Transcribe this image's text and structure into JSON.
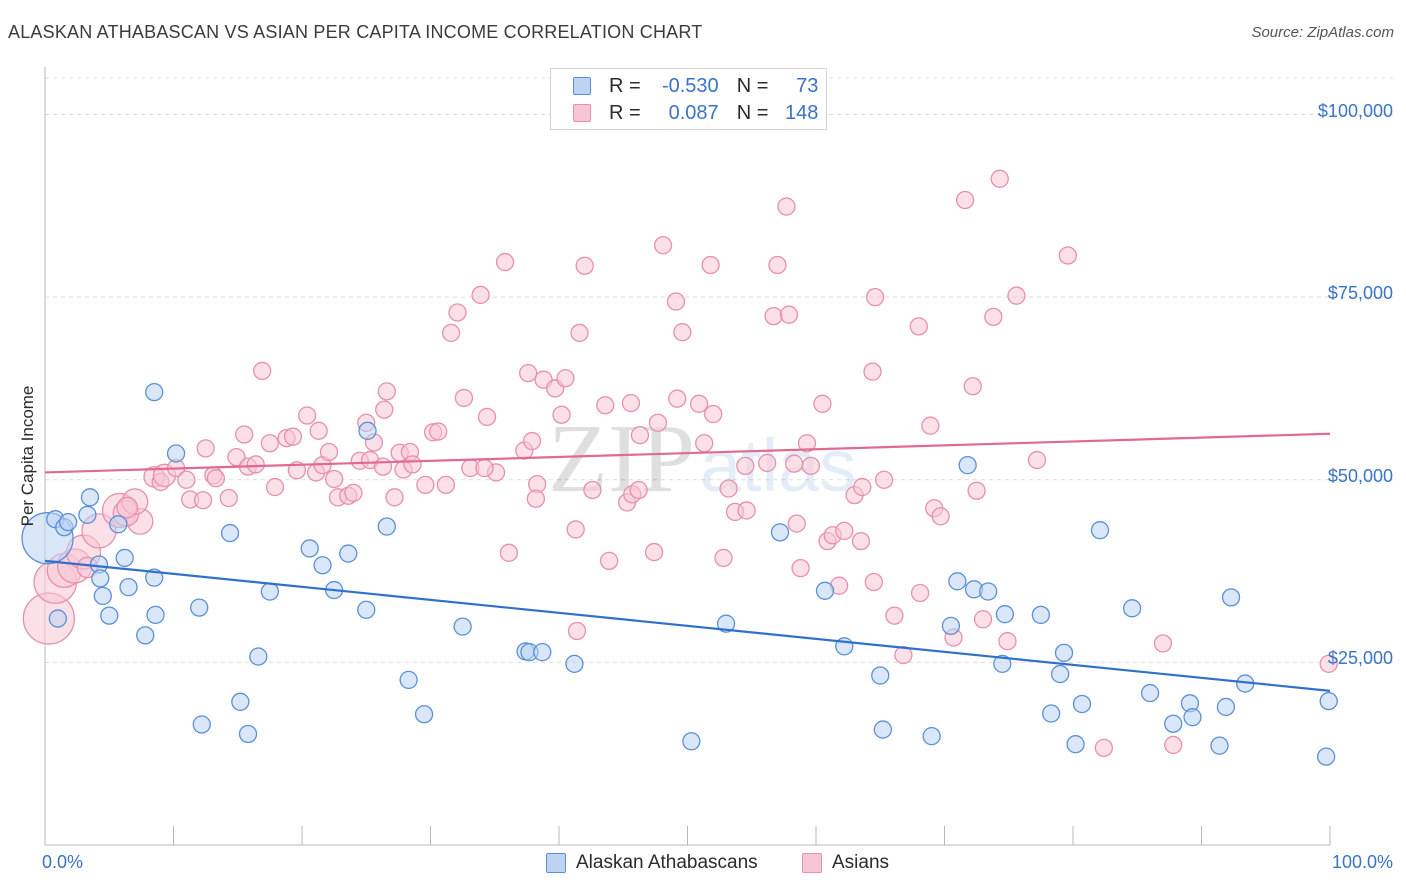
{
  "title": "ALASKAN ATHABASCAN VS ASIAN PER CAPITA INCOME CORRELATION CHART",
  "source": "Source: ZipAtlas.com",
  "watermark": {
    "zip": "ZIP",
    "atlas": "atlas"
  },
  "legend": {
    "r_label": "R =",
    "n_label": "N =",
    "rows": [
      {
        "r": "-0.530",
        "n": "73"
      },
      {
        "r": "0.087",
        "n": "148"
      }
    ]
  },
  "bottom_legend": [
    "Alaskan Athabascans",
    "Asians"
  ],
  "colors": {
    "blue_fill": "#bcd4f2",
    "blue_stroke": "#5b90d6",
    "blue_line": "#3070cc",
    "pink_fill": "#f7c6d6",
    "pink_stroke": "#e690ac",
    "pink_line": "#e06a92",
    "axis_text": "#3a73c7"
  },
  "chart_data": {
    "type": "scatter",
    "title": "ALASKAN ATHABASCAN VS ASIAN PER CAPITA INCOME CORRELATION CHART",
    "xlabel": "",
    "ylabel": "Per Capita Income",
    "xlim": [
      0,
      100
    ],
    "ylim": [
      0,
      105000
    ],
    "x_tick_labels": [
      "0.0%",
      "100.0%"
    ],
    "y_ticks": [
      25000,
      50000,
      75000,
      100000
    ],
    "y_tick_labels": [
      "$25,000",
      "$50,000",
      "$75,000",
      "$100,000"
    ],
    "grid": true,
    "legend_position": "top-center",
    "series": [
      {
        "name": "Alaskan Athabascans",
        "r": -0.53,
        "n": 73,
        "trend": {
          "x": [
            0,
            100
          ],
          "y": [
            38900,
            21100
          ]
        },
        "points": [
          [
            0.2,
            42000,
            3
          ],
          [
            0.8,
            44600,
            1
          ],
          [
            1.5,
            43500,
            1
          ],
          [
            1.8,
            44200,
            1
          ],
          [
            3.3,
            45200,
            1
          ],
          [
            3.5,
            47600,
            1
          ],
          [
            4.2,
            38400,
            1
          ],
          [
            4.3,
            36500,
            1
          ],
          [
            4.5,
            34100,
            1
          ],
          [
            5.0,
            31400,
            1
          ],
          [
            5.7,
            43900,
            1
          ],
          [
            6.2,
            39300,
            1
          ],
          [
            6.5,
            35300,
            1
          ],
          [
            7.8,
            28700,
            1
          ],
          [
            8.5,
            36600,
            1
          ],
          [
            8.6,
            31500,
            1
          ],
          [
            8.5,
            62000,
            1
          ],
          [
            10.2,
            53600,
            1
          ],
          [
            12.0,
            32500,
            1
          ],
          [
            12.2,
            16500,
            1
          ],
          [
            14.4,
            42700,
            1
          ],
          [
            15.2,
            19600,
            1
          ],
          [
            15.8,
            15200,
            1
          ],
          [
            16.6,
            25800,
            1
          ],
          [
            17.5,
            34700,
            1
          ],
          [
            20.6,
            40600,
            1
          ],
          [
            21.6,
            38300,
            1
          ],
          [
            22.5,
            34900,
            1
          ],
          [
            23.6,
            39900,
            1
          ],
          [
            25.0,
            32200,
            1
          ],
          [
            25.1,
            56700,
            1
          ],
          [
            26.6,
            43600,
            1
          ],
          [
            28.3,
            22600,
            1
          ],
          [
            29.5,
            17900,
            1
          ],
          [
            32.5,
            29900,
            1
          ],
          [
            37.4,
            26500,
            1
          ],
          [
            37.7,
            26400,
            1
          ],
          [
            38.7,
            26400,
            1
          ],
          [
            41.2,
            24800,
            1
          ],
          [
            50.3,
            14200,
            1
          ],
          [
            53.0,
            30300,
            1
          ],
          [
            57.2,
            42800,
            1
          ],
          [
            60.7,
            34800,
            1
          ],
          [
            62.2,
            27200,
            1
          ],
          [
            65.0,
            23200,
            1
          ],
          [
            65.2,
            15800,
            1
          ],
          [
            69.0,
            14900,
            1
          ],
          [
            70.5,
            30000,
            1
          ],
          [
            71.0,
            36100,
            1
          ],
          [
            72.3,
            35000,
            1
          ],
          [
            71.8,
            52000,
            1
          ],
          [
            73.4,
            34700,
            1
          ],
          [
            74.5,
            24800,
            1
          ],
          [
            74.7,
            31600,
            1
          ],
          [
            77.5,
            31500,
            1
          ],
          [
            78.3,
            18000,
            1
          ],
          [
            79.0,
            23400,
            1
          ],
          [
            79.3,
            26300,
            1
          ],
          [
            80.2,
            13800,
            1
          ],
          [
            80.7,
            19300,
            1
          ],
          [
            82.1,
            43100,
            1
          ],
          [
            84.6,
            32400,
            1
          ],
          [
            86.0,
            20800,
            1
          ],
          [
            87.8,
            16600,
            1
          ],
          [
            89.1,
            19400,
            1
          ],
          [
            89.3,
            17500,
            1
          ],
          [
            91.4,
            13600,
            1
          ],
          [
            91.9,
            18900,
            1
          ],
          [
            92.3,
            33900,
            1
          ],
          [
            93.4,
            22100,
            1
          ],
          [
            99.7,
            12100,
            1
          ],
          [
            99.9,
            19700,
            1
          ],
          [
            1.0,
            31000,
            1
          ]
        ]
      },
      {
        "name": "Asians",
        "r": 0.087,
        "n": 148,
        "trend": {
          "x": [
            0,
            100
          ],
          "y": [
            51000,
            56300
          ]
        },
        "points": [
          [
            0.3,
            31000,
            3
          ],
          [
            0.8,
            36000,
            2.5
          ],
          [
            1.5,
            37600,
            2
          ],
          [
            2.3,
            38200,
            2
          ],
          [
            3.0,
            40100,
            2
          ],
          [
            4.2,
            43000,
            2
          ],
          [
            5.8,
            45800,
            2
          ],
          [
            7.4,
            44300,
            1.5
          ],
          [
            6.3,
            45400,
            1.5
          ],
          [
            7.0,
            47000,
            1.5
          ],
          [
            3.3,
            38000,
            1.2
          ],
          [
            6.4,
            46200,
            1.2
          ],
          [
            8.5,
            50400,
            1.2
          ],
          [
            9.0,
            49700,
            1
          ],
          [
            9.3,
            50600,
            1.3
          ],
          [
            10.2,
            51600,
            1
          ],
          [
            11.3,
            47300,
            1
          ],
          [
            11.0,
            50000,
            1
          ],
          [
            12.3,
            47200,
            1
          ],
          [
            12.5,
            54300,
            1
          ],
          [
            13.1,
            50600,
            1
          ],
          [
            13.3,
            50200,
            1
          ],
          [
            14.3,
            47500,
            1
          ],
          [
            14.9,
            53100,
            1
          ],
          [
            15.5,
            56200,
            1
          ],
          [
            15.8,
            51800,
            1
          ],
          [
            16.4,
            52100,
            1
          ],
          [
            16.9,
            64900,
            1
          ],
          [
            17.5,
            55000,
            1
          ],
          [
            17.9,
            49000,
            1
          ],
          [
            18.8,
            55700,
            1
          ],
          [
            19.3,
            55900,
            1
          ],
          [
            19.6,
            51300,
            1
          ],
          [
            20.4,
            58800,
            1
          ],
          [
            21.1,
            51000,
            1
          ],
          [
            21.3,
            56700,
            1
          ],
          [
            21.6,
            52000,
            1
          ],
          [
            22.1,
            53800,
            1
          ],
          [
            22.5,
            50100,
            1
          ],
          [
            22.8,
            47600,
            1
          ],
          [
            23.6,
            47800,
            1
          ],
          [
            24.0,
            48200,
            1
          ],
          [
            24.5,
            52600,
            1
          ],
          [
            25.0,
            57800,
            1
          ],
          [
            25.3,
            52700,
            1
          ],
          [
            25.6,
            55100,
            1
          ],
          [
            26.3,
            51800,
            1
          ],
          [
            26.4,
            59600,
            1
          ],
          [
            26.6,
            62100,
            1
          ],
          [
            27.2,
            47600,
            1
          ],
          [
            27.6,
            53700,
            1
          ],
          [
            27.9,
            51400,
            1
          ],
          [
            28.4,
            53800,
            1
          ],
          [
            28.6,
            52100,
            1
          ],
          [
            29.6,
            49300,
            1
          ],
          [
            30.2,
            56500,
            1
          ],
          [
            30.6,
            56600,
            1
          ],
          [
            31.2,
            49300,
            1
          ],
          [
            31.6,
            70100,
            1
          ],
          [
            32.1,
            72900,
            1
          ],
          [
            32.6,
            61200,
            1
          ],
          [
            33.1,
            51600,
            1
          ],
          [
            33.9,
            75300,
            1
          ],
          [
            34.4,
            58600,
            1
          ],
          [
            35.1,
            51000,
            1
          ],
          [
            35.8,
            79800,
            1
          ],
          [
            36.1,
            40000,
            1
          ],
          [
            37.6,
            64600,
            1
          ],
          [
            37.3,
            54000,
            1
          ],
          [
            37.9,
            55300,
            1
          ],
          [
            38.3,
            49400,
            1
          ],
          [
            38.8,
            63700,
            1
          ],
          [
            39.7,
            62500,
            1
          ],
          [
            40.2,
            58900,
            1
          ],
          [
            40.5,
            63900,
            1
          ],
          [
            41.3,
            43200,
            1
          ],
          [
            41.6,
            70100,
            1
          ],
          [
            42.0,
            79300,
            1
          ],
          [
            42.6,
            48600,
            1
          ],
          [
            43.6,
            60200,
            1
          ],
          [
            43.9,
            38900,
            1
          ],
          [
            45.3,
            46900,
            1
          ],
          [
            45.6,
            60500,
            1
          ],
          [
            45.7,
            48000,
            1
          ],
          [
            46.3,
            56100,
            1
          ],
          [
            47.4,
            40100,
            1
          ],
          [
            47.7,
            57800,
            1
          ],
          [
            48.1,
            82100,
            1
          ],
          [
            49.1,
            74400,
            1
          ],
          [
            49.2,
            61100,
            1
          ],
          [
            49.6,
            70200,
            1
          ],
          [
            50.9,
            60400,
            1
          ],
          [
            51.3,
            55000,
            1
          ],
          [
            51.8,
            79400,
            1
          ],
          [
            52.0,
            59000,
            1
          ],
          [
            52.8,
            39300,
            1
          ],
          [
            53.2,
            48800,
            1
          ],
          [
            53.7,
            45600,
            1
          ],
          [
            54.5,
            51900,
            1
          ],
          [
            54.6,
            45800,
            1
          ],
          [
            56.2,
            52300,
            1
          ],
          [
            56.7,
            72400,
            1
          ],
          [
            57.0,
            79400,
            1
          ],
          [
            57.7,
            87400,
            1
          ],
          [
            57.9,
            72600,
            1
          ],
          [
            58.3,
            52200,
            1
          ],
          [
            58.8,
            37900,
            1
          ],
          [
            59.3,
            55000,
            1
          ],
          [
            59.6,
            51900,
            1
          ],
          [
            60.5,
            60400,
            1
          ],
          [
            60.9,
            41600,
            1
          ],
          [
            61.3,
            42400,
            1
          ],
          [
            61.8,
            35500,
            1
          ],
          [
            62.2,
            43000,
            1
          ],
          [
            63.0,
            47900,
            1
          ],
          [
            63.6,
            49000,
            1
          ],
          [
            63.5,
            41600,
            1
          ],
          [
            64.4,
            64800,
            1
          ],
          [
            64.6,
            75000,
            1
          ],
          [
            65.3,
            50000,
            1
          ],
          [
            66.1,
            31400,
            1
          ],
          [
            66.8,
            26000,
            1
          ],
          [
            68.0,
            71000,
            1
          ],
          [
            68.1,
            34500,
            1
          ],
          [
            68.9,
            57400,
            1
          ],
          [
            69.2,
            46100,
            1
          ],
          [
            69.7,
            45000,
            1
          ],
          [
            70.7,
            28400,
            1
          ],
          [
            71.6,
            88300,
            1
          ],
          [
            72.2,
            62800,
            1
          ],
          [
            72.5,
            48500,
            1
          ],
          [
            73.0,
            30900,
            1
          ],
          [
            73.8,
            72300,
            1
          ],
          [
            74.3,
            91200,
            1
          ],
          [
            74.9,
            27900,
            1
          ],
          [
            75.6,
            75200,
            1
          ],
          [
            77.2,
            52700,
            1
          ],
          [
            79.6,
            80700,
            1
          ],
          [
            82.4,
            13300,
            1
          ],
          [
            87.0,
            27600,
            1
          ],
          [
            87.8,
            13700,
            1
          ],
          [
            99.9,
            24800,
            1
          ],
          [
            38.2,
            47400,
            1
          ],
          [
            41.4,
            29300,
            1
          ],
          [
            34.2,
            51600,
            1
          ],
          [
            46.2,
            48600,
            1
          ],
          [
            58.5,
            44000,
            1
          ],
          [
            64.5,
            36000,
            1
          ]
        ]
      }
    ]
  }
}
